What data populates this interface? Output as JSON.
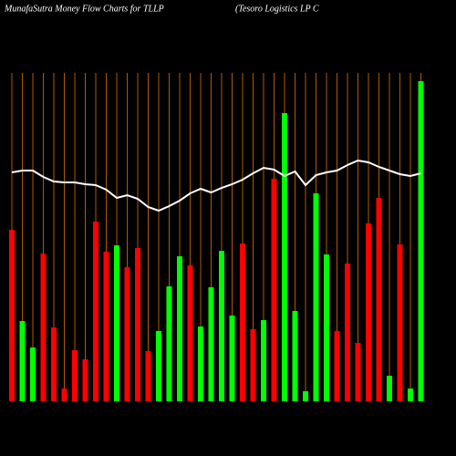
{
  "chart_data": {
    "type": "bar",
    "title": "MunafaSutra  Money Flow  Charts for TLLP",
    "subtitle": "(Tesoro  Logistics LP C",
    "categories": [
      null,
      null,
      null,
      null,
      null,
      null,
      null,
      null,
      null,
      null,
      null,
      null,
      null,
      null,
      null,
      null,
      null,
      null,
      null,
      null,
      null,
      null,
      null,
      null,
      null,
      null,
      null,
      null,
      null,
      null,
      null,
      null,
      null,
      null,
      null,
      null,
      null,
      null,
      null,
      null
    ],
    "values": [
      188,
      88,
      59,
      162,
      81,
      14,
      56,
      46,
      197,
      164,
      171,
      147,
      168,
      55,
      77,
      126,
      159,
      149,
      82,
      125,
      165,
      94,
      173,
      79,
      89,
      244,
      316,
      99,
      11,
      228,
      161,
      77,
      151,
      64,
      195,
      223,
      28,
      172,
      14,
      351
    ],
    "colors": [
      "#ff0000",
      "#00ff00",
      "#00ff00",
      "#ff0000",
      "#ff0000",
      "#ff0000",
      "#ff0000",
      "#ff0000",
      "#ff0000",
      "#ff0000",
      "#00ff00",
      "#ff0000",
      "#ff0000",
      "#ff0000",
      "#00ff00",
      "#00ff00",
      "#00ff00",
      "#ff0000",
      "#00ff00",
      "#00ff00",
      "#00ff00",
      "#00ff00",
      "#ff0000",
      "#ff0000",
      "#00ff00",
      "#ff0000",
      "#00ff00",
      "#00ff00",
      "#00ff00",
      "#00ff00",
      "#00ff00",
      "#ff0000",
      "#ff0000",
      "#ff0000",
      "#ff0000",
      "#ff0000",
      "#00ff00",
      "#ff0000",
      "#00ff00",
      "#00ff00"
    ],
    "line": {
      "color": "#ffffff",
      "values": [
        251,
        253,
        253,
        246,
        241,
        240,
        240,
        238,
        237,
        232,
        223,
        226,
        222,
        213,
        209,
        214,
        220,
        228,
        233,
        229,
        234,
        238,
        243,
        250,
        256,
        254,
        247,
        252,
        237,
        248,
        251,
        253,
        259,
        264,
        262,
        257,
        253,
        249,
        247,
        250
      ]
    },
    "ylim": [
      0,
      360
    ],
    "grid_color": "#b35900"
  }
}
